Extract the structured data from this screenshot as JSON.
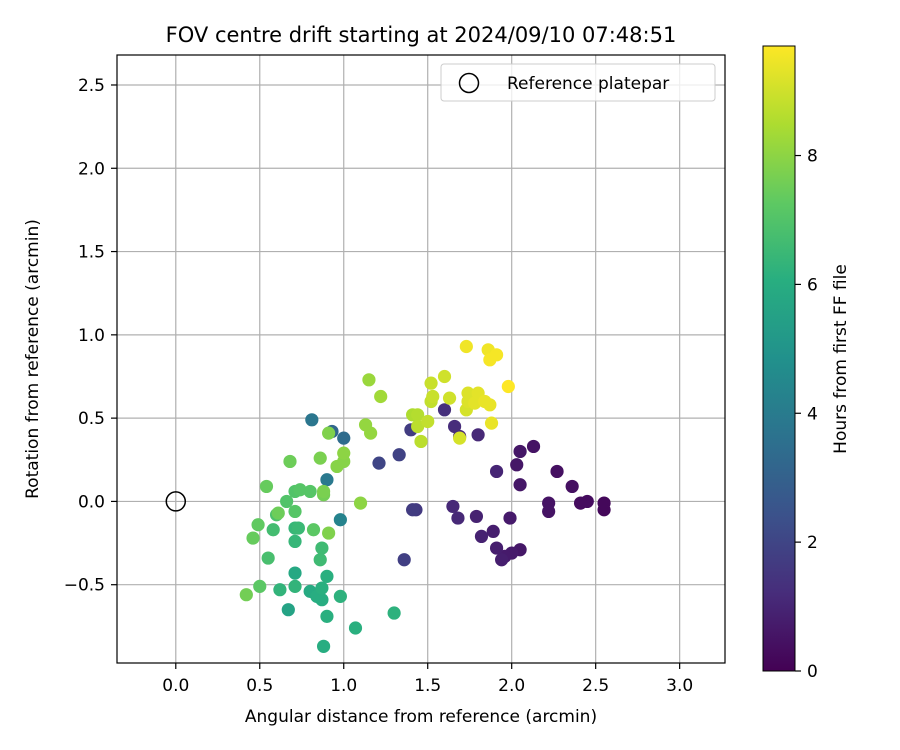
{
  "chart_data": {
    "type": "scatter",
    "title": "FOV centre drift starting at 2024/09/10 07:48:51",
    "xlabel": "Angular distance from reference (arcmin)",
    "ylabel": "Rotation from reference (arcmin)",
    "xlim": [
      -0.35,
      3.27
    ],
    "ylim": [
      -0.97,
      2.68
    ],
    "xticks": [
      0.0,
      0.5,
      1.0,
      1.5,
      2.0,
      2.5,
      3.0
    ],
    "xtick_labels": [
      "0.0",
      "0.5",
      "1.0",
      "1.5",
      "2.0",
      "2.5",
      "3.0"
    ],
    "yticks": [
      -0.5,
      0.0,
      0.5,
      1.0,
      1.5,
      2.0,
      2.5
    ],
    "ytick_labels": [
      "−0.5",
      "0.0",
      "0.5",
      "1.0",
      "1.5",
      "2.0",
      "2.5"
    ],
    "grid": true,
    "legend": {
      "position": "top-right",
      "entries": [
        "Reference platepar"
      ]
    },
    "reference_point": {
      "x": 0.0,
      "y": 0.0,
      "marker": "open-circle"
    },
    "colorbar": {
      "label": "Hours from first FF file",
      "colormap": "viridis",
      "range": [
        0,
        9.7
      ],
      "ticks": [
        0,
        2,
        4,
        6,
        8
      ],
      "tick_labels": [
        "0",
        "2",
        "4",
        "6",
        "8"
      ]
    },
    "points": [
      {
        "x": 2.55,
        "y": -0.05,
        "c": 0.2
      },
      {
        "x": 2.55,
        "y": -0.01,
        "c": 0.2
      },
      {
        "x": 2.45,
        "y": 0.0,
        "c": 0.3
      },
      {
        "x": 2.41,
        "y": -0.01,
        "c": 0.3
      },
      {
        "x": 2.36,
        "y": 0.09,
        "c": 0.4
      },
      {
        "x": 2.27,
        "y": 0.18,
        "c": 0.4
      },
      {
        "x": 2.22,
        "y": -0.01,
        "c": 0.5
      },
      {
        "x": 2.22,
        "y": -0.06,
        "c": 0.5
      },
      {
        "x": 2.13,
        "y": 0.33,
        "c": 0.5
      },
      {
        "x": 2.05,
        "y": 0.3,
        "c": 0.6
      },
      {
        "x": 2.05,
        "y": 0.1,
        "c": 0.6
      },
      {
        "x": 2.03,
        "y": 0.22,
        "c": 0.6
      },
      {
        "x": 2.05,
        "y": -0.29,
        "c": 0.6
      },
      {
        "x": 2.0,
        "y": -0.31,
        "c": 0.7
      },
      {
        "x": 1.96,
        "y": -0.33,
        "c": 0.7
      },
      {
        "x": 1.94,
        "y": -0.35,
        "c": 0.8
      },
      {
        "x": 1.91,
        "y": -0.28,
        "c": 0.8
      },
      {
        "x": 1.89,
        "y": -0.18,
        "c": 0.8
      },
      {
        "x": 1.82,
        "y": -0.21,
        "c": 0.9
      },
      {
        "x": 1.79,
        "y": -0.09,
        "c": 0.9
      },
      {
        "x": 1.99,
        "y": -0.1,
        "c": 0.7
      },
      {
        "x": 1.91,
        "y": 0.18,
        "c": 1.0
      },
      {
        "x": 1.8,
        "y": 0.4,
        "c": 1.1
      },
      {
        "x": 1.69,
        "y": 0.39,
        "c": 1.1
      },
      {
        "x": 1.66,
        "y": 0.45,
        "c": 1.2
      },
      {
        "x": 1.6,
        "y": 0.55,
        "c": 1.3
      },
      {
        "x": 1.65,
        "y": -0.03,
        "c": 1.1
      },
      {
        "x": 1.68,
        "y": -0.1,
        "c": 1.1
      },
      {
        "x": 1.43,
        "y": -0.05,
        "c": 1.6
      },
      {
        "x": 1.41,
        "y": -0.05,
        "c": 1.7
      },
      {
        "x": 1.4,
        "y": 0.43,
        "c": 1.7
      },
      {
        "x": 1.33,
        "y": 0.28,
        "c": 1.9
      },
      {
        "x": 1.21,
        "y": 0.23,
        "c": 2.0
      },
      {
        "x": 1.36,
        "y": -0.35,
        "c": 1.8
      },
      {
        "x": 0.93,
        "y": 0.42,
        "c": 3.2
      },
      {
        "x": 1.0,
        "y": 0.38,
        "c": 3.4
      },
      {
        "x": 0.81,
        "y": 0.49,
        "c": 3.8
      },
      {
        "x": 0.9,
        "y": 0.13,
        "c": 3.9
      },
      {
        "x": 0.98,
        "y": -0.11,
        "c": 4.3
      },
      {
        "x": 0.67,
        "y": -0.65,
        "c": 5.6
      },
      {
        "x": 0.71,
        "y": -0.43,
        "c": 5.8
      },
      {
        "x": 0.8,
        "y": -0.54,
        "c": 5.9
      },
      {
        "x": 0.84,
        "y": -0.57,
        "c": 6.0
      },
      {
        "x": 0.87,
        "y": -0.59,
        "c": 6.0
      },
      {
        "x": 0.87,
        "y": -0.52,
        "c": 6.1
      },
      {
        "x": 0.9,
        "y": -0.45,
        "c": 6.1
      },
      {
        "x": 0.9,
        "y": -0.69,
        "c": 6.1
      },
      {
        "x": 0.88,
        "y": -0.87,
        "c": 6.0
      },
      {
        "x": 0.98,
        "y": -0.57,
        "c": 6.2
      },
      {
        "x": 1.07,
        "y": -0.76,
        "c": 6.1
      },
      {
        "x": 1.3,
        "y": -0.67,
        "c": 6.2
      },
      {
        "x": 0.62,
        "y": -0.53,
        "c": 6.3
      },
      {
        "x": 0.71,
        "y": -0.51,
        "c": 6.3
      },
      {
        "x": 0.71,
        "y": -0.24,
        "c": 6.4
      },
      {
        "x": 0.71,
        "y": -0.16,
        "c": 6.4
      },
      {
        "x": 0.73,
        "y": -0.16,
        "c": 6.5
      },
      {
        "x": 0.87,
        "y": -0.28,
        "c": 6.6
      },
      {
        "x": 0.86,
        "y": -0.35,
        "c": 6.6
      },
      {
        "x": 0.58,
        "y": -0.17,
        "c": 6.7
      },
      {
        "x": 0.55,
        "y": -0.34,
        "c": 6.8
      },
      {
        "x": 0.6,
        "y": -0.08,
        "c": 6.9
      },
      {
        "x": 0.66,
        "y": 0.0,
        "c": 7.0
      },
      {
        "x": 0.71,
        "y": 0.06,
        "c": 7.0
      },
      {
        "x": 0.74,
        "y": 0.07,
        "c": 7.1
      },
      {
        "x": 0.8,
        "y": 0.06,
        "c": 7.1
      },
      {
        "x": 0.71,
        "y": -0.06,
        "c": 7.1
      },
      {
        "x": 0.82,
        "y": -0.17,
        "c": 7.2
      },
      {
        "x": 0.5,
        "y": -0.51,
        "c": 7.2
      },
      {
        "x": 0.49,
        "y": -0.14,
        "c": 7.3
      },
      {
        "x": 0.46,
        "y": -0.22,
        "c": 7.4
      },
      {
        "x": 0.54,
        "y": 0.09,
        "c": 7.4
      },
      {
        "x": 0.68,
        "y": 0.24,
        "c": 7.5
      },
      {
        "x": 0.61,
        "y": -0.07,
        "c": 7.5
      },
      {
        "x": 0.88,
        "y": 0.04,
        "c": 7.6
      },
      {
        "x": 0.88,
        "y": 0.06,
        "c": 7.7
      },
      {
        "x": 0.86,
        "y": 0.26,
        "c": 7.7
      },
      {
        "x": 0.91,
        "y": 0.41,
        "c": 7.8
      },
      {
        "x": 0.91,
        "y": -0.19,
        "c": 7.8
      },
      {
        "x": 0.96,
        "y": 0.21,
        "c": 7.9
      },
      {
        "x": 1.0,
        "y": 0.24,
        "c": 7.9
      },
      {
        "x": 1.0,
        "y": 0.29,
        "c": 8.0
      },
      {
        "x": 1.1,
        "y": -0.01,
        "c": 8.0
      },
      {
        "x": 1.13,
        "y": 0.46,
        "c": 8.1
      },
      {
        "x": 1.16,
        "y": 0.41,
        "c": 8.1
      },
      {
        "x": 1.15,
        "y": 0.73,
        "c": 8.2
      },
      {
        "x": 1.22,
        "y": 0.63,
        "c": 8.3
      },
      {
        "x": 0.42,
        "y": -0.56,
        "c": 7.6
      },
      {
        "x": 1.41,
        "y": 0.52,
        "c": 8.5
      },
      {
        "x": 1.44,
        "y": 0.52,
        "c": 8.6
      },
      {
        "x": 1.44,
        "y": 0.45,
        "c": 8.7
      },
      {
        "x": 1.46,
        "y": 0.36,
        "c": 8.7
      },
      {
        "x": 1.5,
        "y": 0.48,
        "c": 8.8
      },
      {
        "x": 1.52,
        "y": 0.6,
        "c": 8.8
      },
      {
        "x": 1.53,
        "y": 0.63,
        "c": 8.9
      },
      {
        "x": 1.52,
        "y": 0.71,
        "c": 8.9
      },
      {
        "x": 1.6,
        "y": 0.75,
        "c": 9.0
      },
      {
        "x": 1.63,
        "y": 0.62,
        "c": 9.0
      },
      {
        "x": 1.69,
        "y": 0.38,
        "c": 9.1
      },
      {
        "x": 1.73,
        "y": 0.55,
        "c": 9.1
      },
      {
        "x": 1.74,
        "y": 0.6,
        "c": 9.2
      },
      {
        "x": 1.74,
        "y": 0.65,
        "c": 9.2
      },
      {
        "x": 1.78,
        "y": 0.59,
        "c": 9.3
      },
      {
        "x": 1.8,
        "y": 0.65,
        "c": 9.3
      },
      {
        "x": 1.84,
        "y": 0.6,
        "c": 9.4
      },
      {
        "x": 1.87,
        "y": 0.58,
        "c": 9.4
      },
      {
        "x": 1.88,
        "y": 0.47,
        "c": 9.4
      },
      {
        "x": 1.73,
        "y": 0.93,
        "c": 9.5
      },
      {
        "x": 1.86,
        "y": 0.91,
        "c": 9.5
      },
      {
        "x": 1.87,
        "y": 0.85,
        "c": 9.6
      },
      {
        "x": 1.91,
        "y": 0.88,
        "c": 9.6
      },
      {
        "x": 1.98,
        "y": 0.69,
        "c": 9.7
      }
    ]
  }
}
